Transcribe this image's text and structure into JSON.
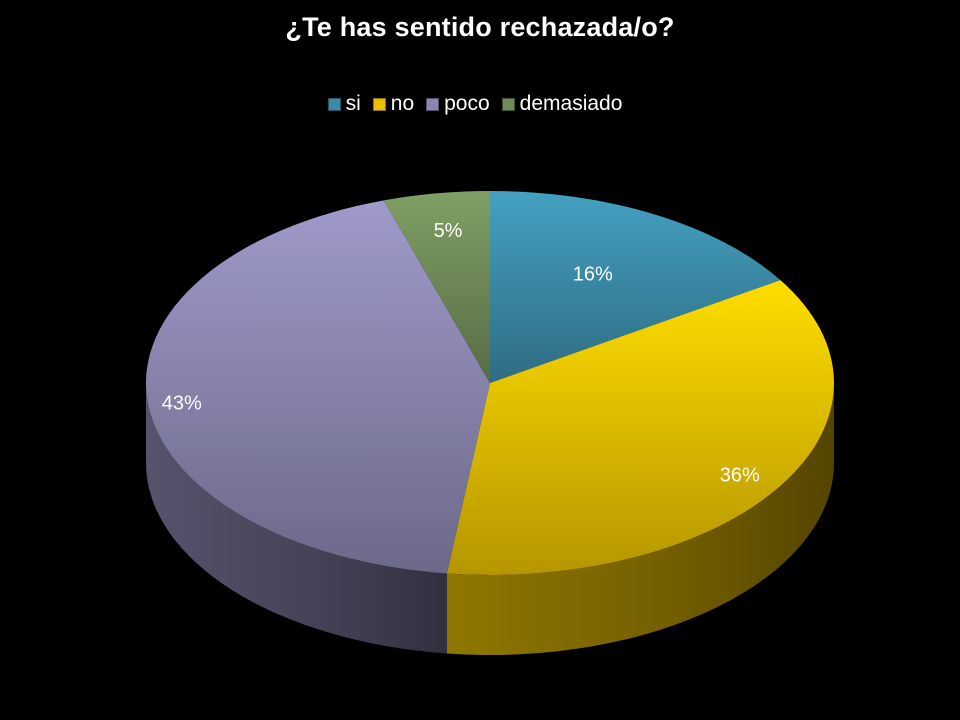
{
  "chart_data": {
    "type": "pie",
    "title": "¿Te has sentido rechazada/o?",
    "categories": [
      "si",
      "no",
      "poco",
      "demasiado"
    ],
    "values": [
      16,
      36,
      43,
      5
    ],
    "data_labels": [
      "16%",
      "36%",
      "43%",
      "5%"
    ],
    "colors": [
      "#3b8ba8",
      "#e8c000",
      "#8a86b0",
      "#6f8a58"
    ],
    "legend_position": "top",
    "style": "3d"
  }
}
